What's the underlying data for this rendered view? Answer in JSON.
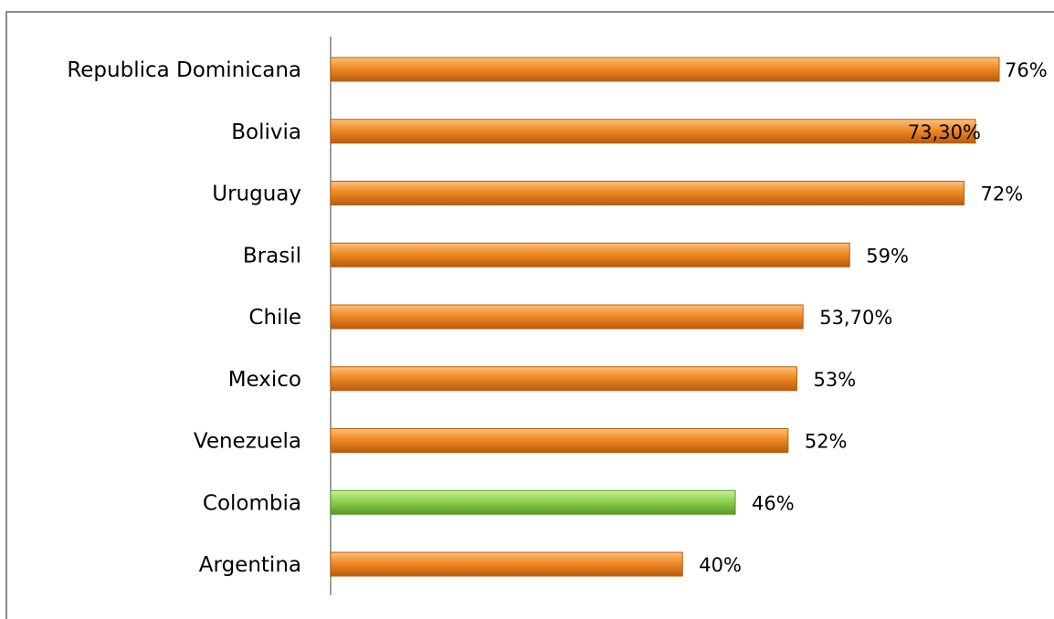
{
  "chart_data": {
    "type": "bar",
    "orientation": "horizontal",
    "categories": [
      "Republica Dominicana",
      "Bolivia",
      "Uruguay",
      "Brasil",
      "Chile",
      "Mexico",
      "Venezuela",
      "Colombia",
      "Argentina"
    ],
    "values": [
      76,
      73.3,
      72,
      59,
      53.7,
      53,
      52,
      46,
      40
    ],
    "value_labels": [
      "76%",
      "73,30%",
      "72%",
      "59%",
      "53,70%",
      "53%",
      "52%",
      "46%",
      "40%"
    ],
    "highlight_category": "Colombia",
    "xlim": [
      0,
      76
    ],
    "grid": false,
    "legend": "none",
    "colors": {
      "default_bar": "#f08a24",
      "default_bar_light": "#fdc27a",
      "default_bar_dark": "#b85c0e",
      "highlight_bar": "#8fd14f",
      "highlight_bar_light": "#c9f09a",
      "highlight_bar_dark": "#5a9a26",
      "axis": "#7f7f7f",
      "frame": "#8a8a8a"
    }
  }
}
